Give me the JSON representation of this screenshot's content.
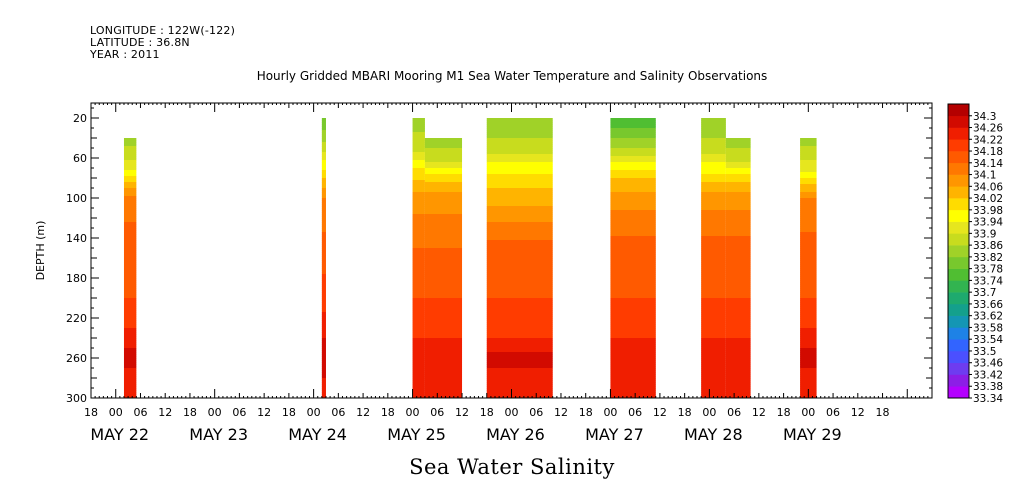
{
  "header": {
    "longitude": "LONGITUDE : 122W(-122)",
    "latitude": "LATITUDE : 36.8N",
    "year": "YEAR : 2011"
  },
  "title": "Hourly Gridded MBARI Mooring M1 Sea Water Temperature and Salinity Observations",
  "bottom_title": "Sea Water Salinity",
  "chart_data": {
    "type": "heatmap",
    "title": "Hourly Gridded MBARI Mooring M1 Sea Water Temperature and Salinity Observations",
    "variable": "Sea Water Salinity",
    "xlabel": "",
    "ylabel": "DEPTH (m)",
    "y_reversed": true,
    "ylim": [
      300,
      5
    ],
    "xlim_hours": [
      -6,
      198
    ],
    "x_origin": "2011-05-22 00:00",
    "y_ticks": [
      20,
      60,
      100,
      140,
      180,
      220,
      260,
      300
    ],
    "x_hour_tick_labels": [
      "18",
      "00",
      "06",
      "12",
      "18",
      "00",
      "06",
      "12",
      "18",
      "00",
      "06",
      "12",
      "18",
      "00",
      "06",
      "12",
      "18",
      "00",
      "06",
      "12",
      "18",
      "00",
      "06",
      "12",
      "18",
      "00",
      "06",
      "12",
      "18",
      "00",
      "06",
      "12",
      "18"
    ],
    "x_day_labels": [
      {
        "label": "MAY 22",
        "hour": 0
      },
      {
        "label": "MAY 23",
        "hour": 24
      },
      {
        "label": "MAY 24",
        "hour": 48
      },
      {
        "label": "MAY 25",
        "hour": 72
      },
      {
        "label": "MAY 26",
        "hour": 96
      },
      {
        "label": "MAY 27",
        "hour": 120
      },
      {
        "label": "MAY 28",
        "hour": 144
      },
      {
        "label": "MAY 29",
        "hour": 168
      }
    ],
    "colorbar": {
      "levels": [
        "33.34",
        "33.38",
        "33.42",
        "33.46",
        "33.5",
        "33.54",
        "33.58",
        "33.62",
        "33.66",
        "33.7",
        "33.74",
        "33.78",
        "33.82",
        "33.86",
        "33.9",
        "33.94",
        "33.98",
        "34.02",
        "34.06",
        "34.1",
        "34.14",
        "34.18",
        "34.22",
        "34.26",
        "34.3"
      ],
      "colors": [
        "#b400ff",
        "#8c1ee6",
        "#6e3cf0",
        "#4b50ff",
        "#3264ff",
        "#1e82e6",
        "#1496b4",
        "#14a08c",
        "#1eaa6e",
        "#32b450",
        "#50be32",
        "#78c82d",
        "#a0d228",
        "#c8dc1e",
        "#e6e61e",
        "#ffff00",
        "#ffdc00",
        "#ffb400",
        "#ff9600",
        "#ff7800",
        "#ff5a00",
        "#ff3c00",
        "#f01e00",
        "#d20a00",
        "#b40000"
      ]
    },
    "data_blocks": [
      {
        "start_hour": 2,
        "end_hour": 5,
        "top_depth": 40,
        "profile": {
          "40": 33.82,
          "70": 33.9,
          "100": 34.1,
          "150": 34.14,
          "200": 34.16,
          "230": 34.2,
          "260": 34.26,
          "290": 34.2,
          "300": 34.2
        }
      },
      {
        "start_hour": 50,
        "end_hour": 51,
        "top_depth": 20,
        "profile": {
          "20": 33.76,
          "50": 33.86,
          "80": 34.0,
          "100": 34.08,
          "150": 34.14,
          "200": 34.18,
          "230": 34.22,
          "260": 34.28,
          "290": 34.22,
          "300": 34.22
        }
      },
      {
        "start_hour": 72,
        "end_hour": 75,
        "top_depth": 20,
        "profile": {
          "20": 33.82,
          "50": 33.86,
          "70": 33.96,
          "100": 34.06,
          "150": 34.12,
          "200": 34.16,
          "240": 34.2,
          "260": 34.24,
          "290": 34.2,
          "300": 34.2
        }
      },
      {
        "start_hour": 75,
        "end_hour": 84,
        "top_depth": 40,
        "profile": {
          "40": 33.82,
          "60": 33.86,
          "80": 33.98,
          "100": 34.06,
          "150": 34.12,
          "200": 34.16,
          "240": 34.2,
          "260": 34.24,
          "290": 34.2,
          "300": 34.2
        }
      },
      {
        "start_hour": 90,
        "end_hour": 106,
        "top_depth": 20,
        "profile": {
          "20": 33.8,
          "50": 33.86,
          "80": 33.98,
          "100": 34.02,
          "150": 34.14,
          "200": 34.16,
          "240": 34.2,
          "260": 34.26,
          "290": 34.2,
          "300": 34.2
        }
      },
      {
        "start_hour": 120,
        "end_hour": 131,
        "top_depth": 20,
        "profile": {
          "20": 33.72,
          "50": 33.84,
          "80": 34.0,
          "100": 34.06,
          "150": 34.14,
          "200": 34.16,
          "240": 34.2,
          "260": 34.24,
          "290": 34.2,
          "300": 34.2
        }
      },
      {
        "start_hour": 142,
        "end_hour": 148,
        "top_depth": 20,
        "profile": {
          "20": 33.8,
          "50": 33.86,
          "80": 33.98,
          "100": 34.06,
          "150": 34.14,
          "200": 34.16,
          "240": 34.2,
          "260": 34.24,
          "290": 34.2,
          "300": 34.2
        }
      },
      {
        "start_hour": 148,
        "end_hour": 154,
        "top_depth": 40,
        "profile": {
          "40": 33.82,
          "60": 33.86,
          "80": 33.98,
          "100": 34.06,
          "150": 34.14,
          "200": 34.16,
          "240": 34.2,
          "260": 34.24,
          "290": 34.2,
          "300": 34.2
        }
      },
      {
        "start_hour": 166,
        "end_hour": 170,
        "top_depth": 40,
        "profile": {
          "40": 33.82,
          "70": 33.9,
          "100": 34.08,
          "150": 34.14,
          "200": 34.16,
          "230": 34.2,
          "260": 34.26,
          "290": 34.2,
          "300": 34.2
        }
      }
    ]
  }
}
